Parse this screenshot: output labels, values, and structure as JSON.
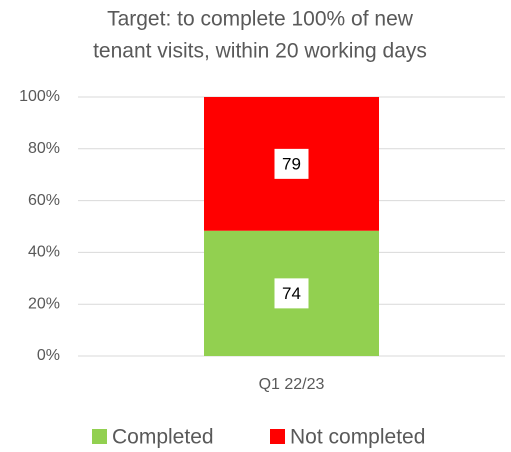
{
  "chart_data": {
    "type": "bar",
    "stack": "percent",
    "title": [
      "Target: to complete 100% of new",
      "tenant visits, within 20 working days"
    ],
    "categories": [
      "Q1 22/23"
    ],
    "series": [
      {
        "name": "Completed",
        "color": "#92d050",
        "values": [
          74
        ]
      },
      {
        "name": "Not completed",
        "color": "#ff0000",
        "values": [
          79
        ]
      }
    ],
    "ylim": [
      0,
      100
    ],
    "yticks": [
      {
        "value": 0,
        "label": "0%"
      },
      {
        "value": 20,
        "label": "20%"
      },
      {
        "value": 40,
        "label": "40%"
      },
      {
        "value": 60,
        "label": "60%"
      },
      {
        "value": 80,
        "label": "80%"
      },
      {
        "value": 100,
        "label": "100%"
      }
    ],
    "grid": true,
    "legend": "bottom"
  }
}
